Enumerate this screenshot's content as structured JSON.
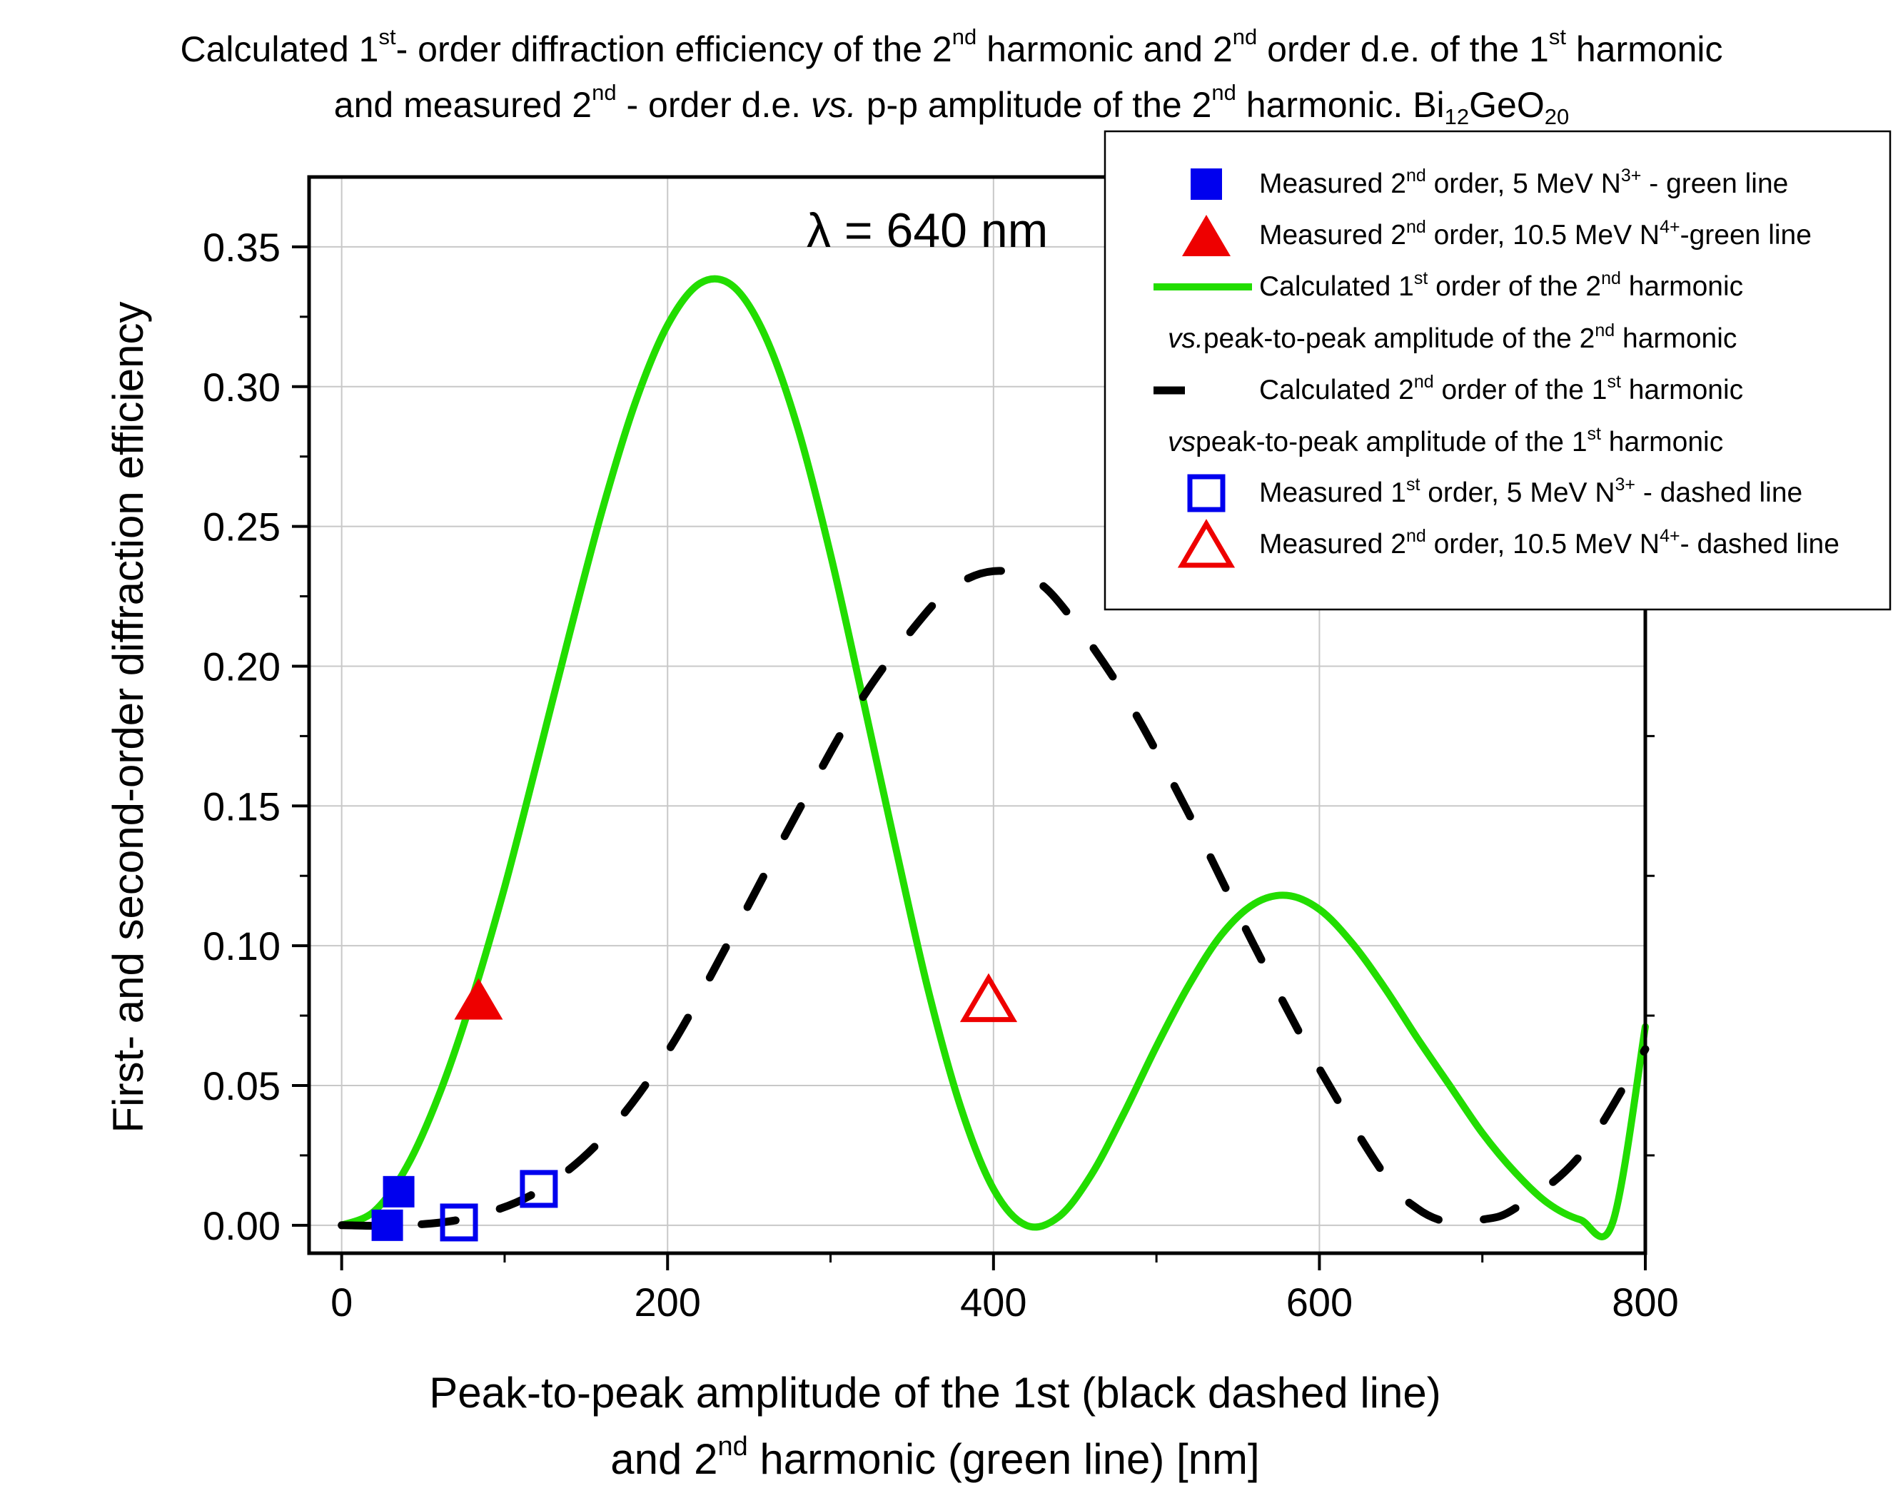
{
  "chart_data": {
    "type": "line",
    "title": {
      "line1": [
        "Calculated 1",
        "st",
        "- order diffraction efficiency of the 2",
        "nd",
        " harmonic and 2",
        "nd",
        " order d.e. of the 1",
        "st",
        " harmonic"
      ],
      "line2": [
        "and measured 2",
        "nd",
        " - order d.e. ",
        "vs.",
        " p-p amplitude of the 2",
        "nd",
        " harmonic.  Bi",
        "12",
        "GeO",
        "20"
      ]
    },
    "xlabel": {
      "line1": "Peak-to-peak amplitude of the 1st (black dashed line)",
      "line2": [
        "and 2",
        "nd",
        " harmonic (green line) [nm]"
      ]
    },
    "ylabel": "First- and second-order diffraction efficiency",
    "xlim": [
      -20,
      800
    ],
    "ylim": [
      -0.01,
      0.375
    ],
    "x_ticks": [
      0,
      200,
      400,
      600,
      800
    ],
    "x_tick_labels": [
      "0",
      "200",
      "400",
      "600",
      "800"
    ],
    "y_ticks": [
      0.0,
      0.05,
      0.1,
      0.15,
      0.2,
      0.25,
      0.3,
      0.35
    ],
    "y_tick_labels": [
      "0.00",
      "0.05",
      "0.10",
      "0.15",
      "0.20",
      "0.25",
      "0.30",
      "0.35"
    ],
    "grid": true,
    "annotation": "λ = 640 nm",
    "series": [
      {
        "name": "Calculated 1st order of the 2nd harmonic vs. peak-to-peak amplitude of the 2nd harmonic",
        "style": "solid",
        "color": "#22dd00",
        "x": [
          0,
          20,
          40,
          60,
          80,
          100,
          120,
          140,
          160,
          180,
          200,
          220,
          240,
          260,
          280,
          300,
          320,
          340,
          360,
          380,
          400,
          420,
          440,
          460,
          480,
          500,
          520,
          540,
          560,
          580,
          600,
          620,
          640,
          660,
          680,
          700,
          720,
          740,
          760,
          780,
          800
        ],
        "y": [
          0.0,
          0.005,
          0.021,
          0.047,
          0.081,
          0.121,
          0.166,
          0.212,
          0.256,
          0.294,
          0.322,
          0.337,
          0.336,
          0.318,
          0.285,
          0.24,
          0.188,
          0.135,
          0.084,
          0.042,
          0.013,
          0.0,
          0.003,
          0.018,
          0.04,
          0.064,
          0.086,
          0.104,
          0.115,
          0.118,
          0.113,
          0.101,
          0.085,
          0.067,
          0.05,
          0.033,
          0.019,
          0.008,
          0.002,
          0.001,
          0.071
        ]
      },
      {
        "name": "Calculated 2nd order of the 1st harmonic vs peak-to-peak amplitude of the 1st harmonic",
        "style": "dashed",
        "color": "#000000",
        "x": [
          0,
          40,
          80,
          120,
          160,
          200,
          240,
          280,
          320,
          360,
          380,
          400,
          420,
          440,
          480,
          520,
          560,
          600,
          640,
          660,
          680,
          700,
          720,
          760,
          800
        ],
        "y": [
          0.0,
          0.0,
          0.003,
          0.012,
          0.031,
          0.062,
          0.104,
          0.148,
          0.189,
          0.22,
          0.23,
          0.234,
          0.232,
          0.223,
          0.19,
          0.147,
          0.1,
          0.056,
          0.018,
          0.006,
          0.001,
          0.002,
          0.006,
          0.025,
          0.063
        ]
      }
    ],
    "points": [
      {
        "name": "Measured 2nd order, 5 MeV N3+ - green line",
        "marker": "square",
        "fill": "filled",
        "color": "#0000ee",
        "x": [
          28,
          35
        ],
        "y": [
          0.0,
          0.012
        ]
      },
      {
        "name": "Measured 2nd order, 10.5 MeV N4+-green line",
        "marker": "triangle",
        "fill": "filled",
        "color": "#ee0000",
        "x": [
          84
        ],
        "y": [
          0.081
        ]
      },
      {
        "name": "Measured 1st order, 5 MeV N3+ - dashed line",
        "marker": "square",
        "fill": "open",
        "color": "#0000ee",
        "x": [
          72,
          121
        ],
        "y": [
          0.001,
          0.013
        ]
      },
      {
        "name": "Measured 2nd order, 10.5 MeV N4+- dashed line",
        "marker": "triangle",
        "fill": "open",
        "color": "#ee0000",
        "x": [
          397
        ],
        "y": [
          0.081
        ]
      }
    ],
    "legend": {
      "placement": "top-right",
      "entries": [
        {
          "symbol": "filled-square",
          "color": "#0000ee",
          "parts": [
            "Measured 2",
            "nd",
            " order, 5 MeV N",
            "3+",
            " - green line"
          ]
        },
        {
          "symbol": "filled-triangle",
          "color": "#ee0000",
          "parts": [
            "Measured 2",
            "nd",
            " order, 10.5 MeV N",
            "4+",
            "-green line"
          ]
        },
        {
          "symbol": "solid-line",
          "color": "#22dd00",
          "parts": [
            "Calculated 1",
            "st",
            " order of the 2",
            "nd",
            " harmonic"
          ]
        },
        {
          "symbol": "none",
          "color": "",
          "parts": [
            "vs.",
            "peak-to-peak amplitude of the 2",
            "nd",
            " harmonic"
          ]
        },
        {
          "symbol": "dashed-line",
          "color": "#000000",
          "parts": [
            "Calculated 2",
            "nd",
            " order of the 1",
            "st",
            " harmonic"
          ]
        },
        {
          "symbol": "none",
          "color": "",
          "parts": [
            "vs",
            "peak-to-peak amplitude of the 1",
            "st",
            " harmonic"
          ]
        },
        {
          "symbol": "open-square",
          "color": "#0000ee",
          "parts": [
            "Measured 1",
            "st",
            " order, 5 MeV N",
            "3+",
            " - dashed line"
          ]
        },
        {
          "symbol": "open-triangle",
          "color": "#ee0000",
          "parts": [
            "Measured 2",
            "nd",
            " order, 10.5 MeV N",
            "4+",
            "- dashed line"
          ]
        }
      ]
    }
  }
}
